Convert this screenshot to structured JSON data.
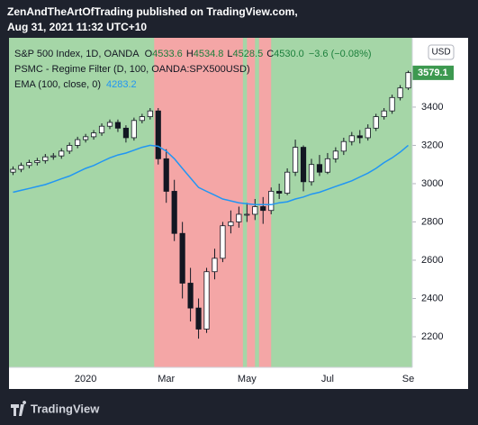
{
  "header": {
    "line1": "ZenAndTheArtOfTrading published on TradingView.com,",
    "line2": "Aug 31, 2021 11:32 UTC+10"
  },
  "footer": {
    "brand": "TradingView"
  },
  "chart_data": {
    "type": "candlestick",
    "symbol": "S&P 500 Index, 1D, OANDA",
    "ohlc_header": [
      {
        "label": "O",
        "value": "4533.6"
      },
      {
        "label": "H",
        "value": "4534.8"
      },
      {
        "label": "L",
        "value": "4528.5"
      },
      {
        "label": "C",
        "value": "4530.0"
      }
    ],
    "change": "−3.6 (−0.08%)",
    "indicator": "PSMC - Regime Filter (D, 100, OANDA:SPX500USD)",
    "currency": "USD",
    "last_price": 3579.1,
    "categories": [
      null,
      null,
      null,
      null,
      null,
      null,
      null,
      null,
      null,
      "2020",
      null,
      null,
      null,
      null,
      null,
      null,
      null,
      null,
      null,
      "Mar",
      null,
      null,
      null,
      null,
      null,
      null,
      null,
      null,
      null,
      "May",
      null,
      null,
      null,
      null,
      null,
      null,
      null,
      null,
      null,
      "Jul",
      null,
      null,
      null,
      null,
      null,
      null,
      null,
      null,
      null,
      "Se"
    ],
    "open": [
      3060,
      3075,
      3095,
      3110,
      3120,
      3140,
      3145,
      3170,
      3200,
      3230,
      3245,
      3265,
      3300,
      3320,
      3290,
      3240,
      3330,
      3350,
      3380,
      3130,
      2960,
      2740,
      2480,
      2350,
      2240,
      2540,
      2610,
      2780,
      2800,
      2840,
      2840,
      2880,
      2860,
      2960,
      2950,
      3060,
      3190,
      3010,
      3100,
      3060,
      3130,
      3170,
      3220,
      3250,
      3240,
      3290,
      3350,
      3380,
      3450,
      3500
    ],
    "high": [
      3090,
      3110,
      3125,
      3135,
      3155,
      3160,
      3185,
      3215,
      3245,
      3260,
      3280,
      3315,
      3335,
      3335,
      3305,
      3345,
      3365,
      3395,
      3395,
      3180,
      3020,
      2800,
      2560,
      2400,
      2560,
      2660,
      2800,
      2860,
      2880,
      2900,
      2920,
      2930,
      2980,
      3000,
      3080,
      3230,
      3200,
      3130,
      3150,
      3160,
      3190,
      3240,
      3270,
      3280,
      3310,
      3365,
      3395,
      3465,
      3515,
      3590
    ],
    "low": [
      3045,
      3060,
      3080,
      3095,
      3105,
      3125,
      3130,
      3155,
      3185,
      3215,
      3230,
      3250,
      3285,
      3270,
      3215,
      3225,
      3315,
      3335,
      3100,
      2900,
      2700,
      2400,
      2280,
      2190,
      2220,
      2500,
      2590,
      2740,
      2770,
      2800,
      2810,
      2790,
      2840,
      2920,
      2940,
      3040,
      2960,
      2990,
      3040,
      3050,
      3110,
      3150,
      3200,
      3210,
      3225,
      3275,
      3335,
      3365,
      3435,
      3490
    ],
    "close": [
      3075,
      3095,
      3110,
      3120,
      3140,
      3145,
      3170,
      3200,
      3230,
      3245,
      3265,
      3300,
      3320,
      3290,
      3240,
      3330,
      3350,
      3380,
      3130,
      2960,
      2740,
      2480,
      2350,
      2240,
      2540,
      2610,
      2780,
      2800,
      2840,
      2840,
      2880,
      2860,
      2960,
      2950,
      3060,
      3190,
      3010,
      3100,
      3060,
      3130,
      3170,
      3220,
      3250,
      3240,
      3290,
      3350,
      3380,
      3450,
      3500,
      3580
    ],
    "up_color": "#ffffff",
    "down_color": "#131722",
    "wick_color": "#131722",
    "series": [
      {
        "name": "EMA (100, close, 0)",
        "color": "#2196f3",
        "last_value": "4283.2",
        "values": [
          2955,
          2965,
          2975,
          2985,
          2995,
          3010,
          3025,
          3040,
          3060,
          3080,
          3095,
          3115,
          3135,
          3150,
          3160,
          3175,
          3190,
          3200,
          3195,
          3170,
          3130,
          3080,
          3030,
          2980,
          2960,
          2940,
          2920,
          2910,
          2900,
          2895,
          2890,
          2890,
          2890,
          2900,
          2905,
          2920,
          2930,
          2945,
          2955,
          2970,
          2985,
          3000,
          3015,
          3035,
          3055,
          3080,
          3110,
          3135,
          3165,
          3200
        ]
      }
    ],
    "background_color": "#a5d6a7",
    "zones": [
      {
        "start": 18,
        "end": 29,
        "color": "#f4a6a6"
      },
      {
        "start": 29.5,
        "end": 30.5,
        "color": "#f4a6a6"
      },
      {
        "start": 31,
        "end": 32.5,
        "color": "#f4a6a6"
      }
    ],
    "ylim": [
      2040,
      3762
    ],
    "yticks": [
      2200,
      2400,
      2600,
      2800,
      3000,
      3200,
      3400
    ]
  }
}
